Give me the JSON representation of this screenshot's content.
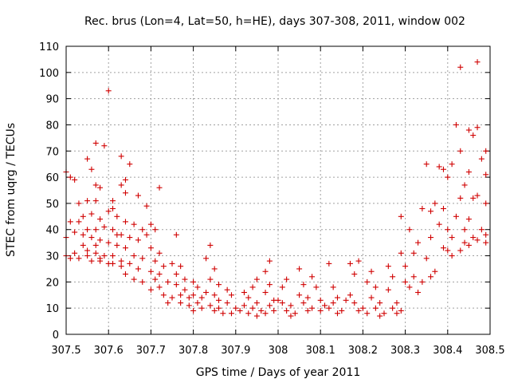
{
  "chart_data": {
    "type": "scatter",
    "title": "Rec. brus (Lon=4, Lat=50, h=HE), days 307-308, 2011, window 002",
    "xlabel": "GPS time / Days of year 2011",
    "ylabel": "STEC from uqrg / TECUs",
    "xlim": [
      307.5,
      308.5
    ],
    "ylim": [
      0,
      110
    ],
    "x_ticks": [
      "307.5",
      "307.6",
      "307.7",
      "307.8",
      "307.9",
      "308",
      "308.1",
      "308.2",
      "308.3",
      "308.4",
      "308.5"
    ],
    "y_ticks": [
      "0",
      "10",
      "20",
      "30",
      "40",
      "50",
      "60",
      "70",
      "80",
      "90",
      "100",
      "110"
    ],
    "grid": true,
    "marker": "+",
    "color": "#d00000",
    "points": [
      [
        307.5,
        62
      ],
      [
        307.51,
        60
      ],
      [
        307.52,
        59
      ],
      [
        307.53,
        50
      ],
      [
        307.51,
        43
      ],
      [
        307.53,
        43
      ],
      [
        307.5,
        37
      ],
      [
        307.52,
        39
      ],
      [
        307.54,
        38
      ],
      [
        307.5,
        30
      ],
      [
        307.51,
        29
      ],
      [
        307.53,
        29
      ],
      [
        307.55,
        30
      ],
      [
        307.52,
        31
      ],
      [
        307.55,
        67
      ],
      [
        307.56,
        63
      ],
      [
        307.57,
        57
      ],
      [
        307.58,
        56
      ],
      [
        307.55,
        51
      ],
      [
        307.57,
        51
      ],
      [
        307.54,
        45
      ],
      [
        307.56,
        46
      ],
      [
        307.58,
        44
      ],
      [
        307.55,
        40
      ],
      [
        307.57,
        40
      ],
      [
        307.56,
        37
      ],
      [
        307.58,
        36
      ],
      [
        307.54,
        34
      ],
      [
        307.57,
        34
      ],
      [
        307.55,
        32
      ],
      [
        307.57,
        31
      ],
      [
        307.58,
        29
      ],
      [
        307.56,
        28
      ],
      [
        307.58,
        28
      ],
      [
        307.6,
        27
      ],
      [
        307.57,
        73
      ],
      [
        307.59,
        72
      ],
      [
        307.6,
        93
      ],
      [
        307.61,
        51
      ],
      [
        307.61,
        48
      ],
      [
        307.6,
        47
      ],
      [
        307.62,
        45
      ],
      [
        307.59,
        41
      ],
      [
        307.61,
        40
      ],
      [
        307.62,
        38
      ],
      [
        307.6,
        35
      ],
      [
        307.62,
        34
      ],
      [
        307.59,
        30
      ],
      [
        307.61,
        30
      ],
      [
        307.63,
        28
      ],
      [
        307.61,
        27
      ],
      [
        307.63,
        26
      ],
      [
        307.63,
        68
      ],
      [
        307.65,
        65
      ],
      [
        307.64,
        59
      ],
      [
        307.63,
        57
      ],
      [
        307.64,
        54
      ],
      [
        307.67,
        53
      ],
      [
        307.64,
        43
      ],
      [
        307.66,
        42
      ],
      [
        307.68,
        40
      ],
      [
        307.63,
        38
      ],
      [
        307.65,
        37
      ],
      [
        307.67,
        36
      ],
      [
        307.64,
        33
      ],
      [
        307.66,
        30
      ],
      [
        307.68,
        29
      ],
      [
        307.65,
        27
      ],
      [
        307.67,
        25
      ],
      [
        307.64,
        23
      ],
      [
        307.66,
        21
      ],
      [
        307.68,
        20
      ],
      [
        307.69,
        49
      ],
      [
        307.7,
        42
      ],
      [
        307.71,
        40
      ],
      [
        307.69,
        38
      ],
      [
        307.72,
        56
      ],
      [
        307.7,
        33
      ],
      [
        307.72,
        31
      ],
      [
        307.71,
        28
      ],
      [
        307.73,
        26
      ],
      [
        307.7,
        24
      ],
      [
        307.72,
        23
      ],
      [
        307.71,
        21
      ],
      [
        307.74,
        20
      ],
      [
        307.72,
        18
      ],
      [
        307.7,
        17
      ],
      [
        307.73,
        15
      ],
      [
        307.75,
        14
      ],
      [
        307.74,
        12
      ],
      [
        307.76,
        38
      ],
      [
        307.75,
        27
      ],
      [
        307.77,
        26
      ],
      [
        307.76,
        23
      ],
      [
        307.78,
        21
      ],
      [
        307.76,
        19
      ],
      [
        307.78,
        17
      ],
      [
        307.77,
        15
      ],
      [
        307.79,
        14
      ],
      [
        307.77,
        12
      ],
      [
        307.79,
        11
      ],
      [
        307.8,
        20
      ],
      [
        307.81,
        18
      ],
      [
        307.8,
        15
      ],
      [
        307.82,
        14
      ],
      [
        307.81,
        12
      ],
      [
        307.82,
        10
      ],
      [
        307.8,
        9
      ],
      [
        307.84,
        34
      ],
      [
        307.83,
        29
      ],
      [
        307.85,
        25
      ],
      [
        307.84,
        21
      ],
      [
        307.86,
        19
      ],
      [
        307.83,
        16
      ],
      [
        307.85,
        15
      ],
      [
        307.86,
        13
      ],
      [
        307.84,
        11
      ],
      [
        307.86,
        10
      ],
      [
        307.85,
        9
      ],
      [
        307.87,
        8
      ],
      [
        307.88,
        12
      ],
      [
        307.89,
        15
      ],
      [
        307.88,
        17
      ],
      [
        307.9,
        10
      ],
      [
        307.89,
        8
      ],
      [
        307.91,
        9
      ],
      [
        307.92,
        16
      ],
      [
        307.94,
        18
      ],
      [
        307.95,
        21
      ],
      [
        307.93,
        14
      ],
      [
        307.95,
        12
      ],
      [
        307.92,
        11
      ],
      [
        307.94,
        10
      ],
      [
        307.96,
        9
      ],
      [
        307.93,
        8
      ],
      [
        307.95,
        7
      ],
      [
        307.97,
        8
      ],
      [
        307.98,
        28
      ],
      [
        307.97,
        24
      ],
      [
        307.98,
        19
      ],
      [
        307.97,
        16
      ],
      [
        307.99,
        13
      ],
      [
        307.98,
        11
      ],
      [
        307.99,
        9
      ],
      [
        308.0,
        13
      ],
      [
        308.01,
        12
      ],
      [
        308.02,
        21
      ],
      [
        308.01,
        18
      ],
      [
        308.03,
        11
      ],
      [
        308.02,
        9
      ],
      [
        308.04,
        8
      ],
      [
        308.03,
        7
      ],
      [
        308.05,
        25
      ],
      [
        308.06,
        19
      ],
      [
        308.05,
        15
      ],
      [
        308.07,
        14
      ],
      [
        308.06,
        12
      ],
      [
        308.08,
        10
      ],
      [
        308.07,
        9
      ],
      [
        308.08,
        22
      ],
      [
        308.09,
        18
      ],
      [
        308.1,
        13
      ],
      [
        308.11,
        11
      ],
      [
        308.1,
        9
      ],
      [
        308.12,
        10
      ],
      [
        308.12,
        27
      ],
      [
        308.13,
        18
      ],
      [
        308.14,
        14
      ],
      [
        308.13,
        12
      ],
      [
        308.15,
        9
      ],
      [
        308.14,
        8
      ],
      [
        308.16,
        13
      ],
      [
        308.17,
        27
      ],
      [
        308.18,
        23
      ],
      [
        308.17,
        15
      ],
      [
        308.19,
        28
      ],
      [
        308.18,
        12
      ],
      [
        308.2,
        10
      ],
      [
        308.19,
        9
      ],
      [
        308.21,
        8
      ],
      [
        308.22,
        24
      ],
      [
        308.21,
        20
      ],
      [
        308.23,
        18
      ],
      [
        308.22,
        14
      ],
      [
        308.24,
        12
      ],
      [
        308.23,
        10
      ],
      [
        308.25,
        8
      ],
      [
        308.24,
        7
      ],
      [
        308.26,
        26
      ],
      [
        308.27,
        22
      ],
      [
        308.26,
        17
      ],
      [
        308.28,
        12
      ],
      [
        308.27,
        10
      ],
      [
        308.29,
        9
      ],
      [
        308.28,
        8
      ],
      [
        308.29,
        31
      ],
      [
        308.3,
        26
      ],
      [
        308.29,
        45
      ],
      [
        308.31,
        40
      ],
      [
        308.3,
        20
      ],
      [
        308.32,
        22
      ],
      [
        308.31,
        18
      ],
      [
        308.33,
        35
      ],
      [
        308.32,
        31
      ],
      [
        308.34,
        20
      ],
      [
        308.33,
        16
      ],
      [
        308.34,
        48
      ],
      [
        308.35,
        65
      ],
      [
        308.36,
        47
      ],
      [
        308.36,
        37
      ],
      [
        308.35,
        29
      ],
      [
        308.37,
        24
      ],
      [
        308.36,
        22
      ],
      [
        308.38,
        64
      ],
      [
        308.37,
        50
      ],
      [
        308.38,
        42
      ],
      [
        308.39,
        63
      ],
      [
        308.4,
        60
      ],
      [
        308.39,
        48
      ],
      [
        308.4,
        40
      ],
      [
        308.39,
        33
      ],
      [
        308.41,
        37
      ],
      [
        308.4,
        32
      ],
      [
        308.42,
        80
      ],
      [
        308.41,
        65
      ],
      [
        308.42,
        45
      ],
      [
        308.41,
        30
      ],
      [
        308.43,
        102
      ],
      [
        308.43,
        70
      ],
      [
        308.44,
        57
      ],
      [
        308.43,
        52
      ],
      [
        308.44,
        40
      ],
      [
        308.44,
        35
      ],
      [
        308.43,
        32
      ],
      [
        308.45,
        78
      ],
      [
        308.46,
        76
      ],
      [
        308.45,
        62
      ],
      [
        308.46,
        52
      ],
      [
        308.45,
        44
      ],
      [
        308.46,
        37
      ],
      [
        308.45,
        34
      ],
      [
        308.47,
        104
      ],
      [
        308.47,
        79
      ],
      [
        308.48,
        67
      ],
      [
        308.47,
        53
      ],
      [
        308.48,
        40
      ],
      [
        308.47,
        36
      ],
      [
        308.49,
        70
      ],
      [
        308.49,
        61
      ],
      [
        308.49,
        50
      ],
      [
        308.49,
        38
      ],
      [
        308.49,
        35
      ]
    ]
  }
}
